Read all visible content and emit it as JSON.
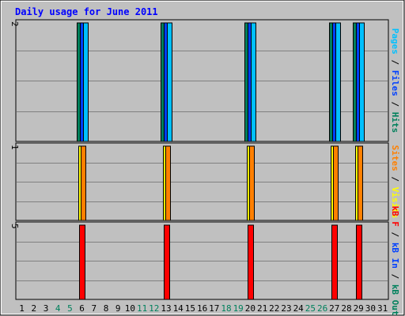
{
  "chart_data": {
    "type": "bar",
    "title": "Daily usage for June 2011",
    "categories": [
      "1",
      "2",
      "3",
      "4",
      "5",
      "6",
      "7",
      "8",
      "9",
      "10",
      "11",
      "12",
      "13",
      "14",
      "15",
      "16",
      "17",
      "18",
      "19",
      "20",
      "21",
      "22",
      "23",
      "24",
      "25",
      "26",
      "27",
      "28",
      "29",
      "30",
      "31"
    ],
    "weekend_days": [
      "4",
      "5",
      "11",
      "12",
      "18",
      "19",
      "25",
      "26"
    ],
    "panels": [
      {
        "id": "pages-files-hits",
        "ymax": 2,
        "ymax_label": "2",
        "label_parts": [
          {
            "text": "Pages",
            "color": "#00c0ff"
          },
          {
            "text": " / ",
            "color": "#000000"
          },
          {
            "text": "Files",
            "color": "#0040ff"
          },
          {
            "text": " / ",
            "color": "#000000"
          },
          {
            "text": "Hits",
            "color": "#00805c"
          }
        ],
        "series": [
          {
            "name": "Hits",
            "color": "#00805c",
            "values": [
              0,
              0,
              0,
              0,
              0,
              2,
              0,
              0,
              0,
              0,
              0,
              0,
              2,
              0,
              0,
              0,
              0,
              0,
              0,
              2,
              0,
              0,
              0,
              0,
              0,
              0,
              2,
              0,
              2,
              0,
              0
            ]
          },
          {
            "name": "Files",
            "color": "#0040ff",
            "values": [
              0,
              0,
              0,
              0,
              0,
              2,
              0,
              0,
              0,
              0,
              0,
              0,
              2,
              0,
              0,
              0,
              0,
              0,
              0,
              2,
              0,
              0,
              0,
              0,
              0,
              0,
              2,
              0,
              2,
              0,
              0
            ]
          },
          {
            "name": "Pages",
            "color": "#00c0ff",
            "values": [
              0,
              0,
              0,
              0,
              0,
              2,
              0,
              0,
              0,
              0,
              0,
              0,
              2,
              0,
              0,
              0,
              0,
              0,
              0,
              2,
              0,
              0,
              0,
              0,
              0,
              0,
              2,
              0,
              2,
              0,
              0
            ]
          }
        ]
      },
      {
        "id": "visits-sites",
        "ymax": 1,
        "ymax_label": "1",
        "label_parts": [
          {
            "text": "Sites",
            "color": "#ff8000"
          },
          {
            "text": " / ",
            "color": "#000000"
          },
          {
            "text": "Visits",
            "color": "#ffff00"
          }
        ],
        "series": [
          {
            "name": "Visits",
            "color": "#ffff00",
            "values": [
              0,
              0,
              0,
              0,
              0,
              1,
              0,
              0,
              0,
              0,
              0,
              0,
              1,
              0,
              0,
              0,
              0,
              0,
              0,
              1,
              0,
              0,
              0,
              0,
              0,
              0,
              1,
              0,
              1,
              0,
              0
            ]
          },
          {
            "name": "Sites",
            "color": "#ff8000",
            "values": [
              0,
              0,
              0,
              0,
              0,
              1,
              0,
              0,
              0,
              0,
              0,
              0,
              1,
              0,
              0,
              0,
              0,
              0,
              0,
              1,
              0,
              0,
              0,
              0,
              0,
              0,
              1,
              0,
              1,
              0,
              0
            ]
          }
        ]
      },
      {
        "id": "kbytes",
        "ymax": 5,
        "ymax_label": "5",
        "label_parts": [
          {
            "text": "kB F",
            "color": "#ff0000"
          },
          {
            "text": " / ",
            "color": "#000000"
          },
          {
            "text": "kB In",
            "color": "#0040ff"
          },
          {
            "text": " / ",
            "color": "#000000"
          },
          {
            "text": "kB Out",
            "color": "#00805c"
          }
        ],
        "series": [
          {
            "name": "kB F",
            "color": "#ff0000",
            "values": [
              0,
              0,
              0,
              0,
              0,
              5,
              0,
              0,
              0,
              0,
              0,
              0,
              5,
              0,
              0,
              0,
              0,
              0,
              0,
              5,
              0,
              0,
              0,
              0,
              0,
              0,
              5,
              0,
              5,
              0,
              0
            ]
          }
        ]
      }
    ],
    "colors": {
      "frame_bg": "#c0c0c0",
      "plot_bg": "#c0c0c0",
      "grid": "#808080",
      "title": "#0000ff",
      "day_label": "#000000",
      "weekend_label": "#00805c"
    }
  }
}
